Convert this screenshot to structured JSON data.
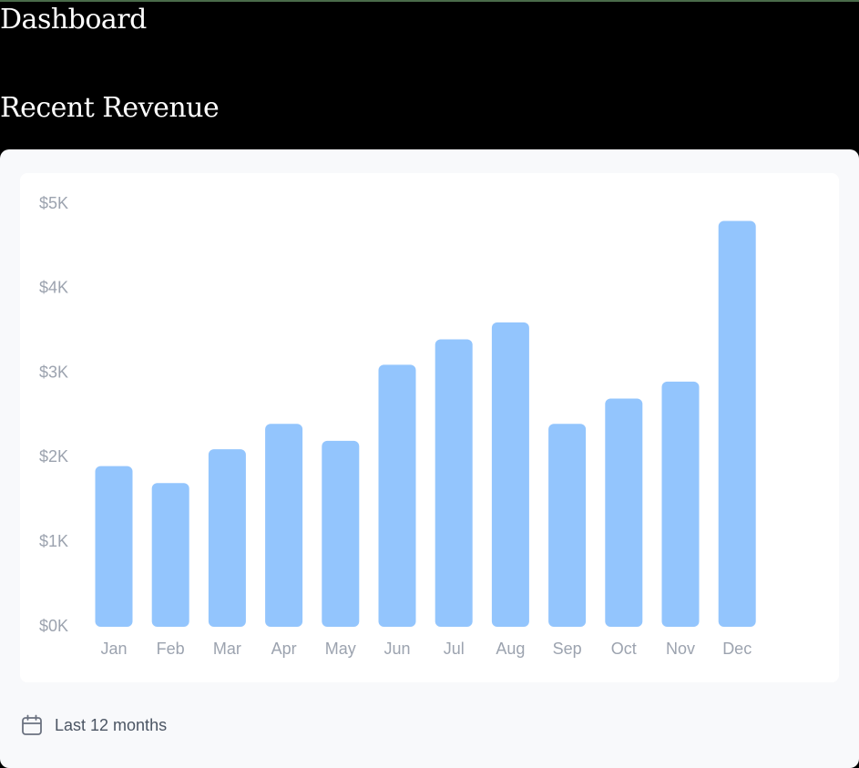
{
  "header": {
    "title": "Dashboard"
  },
  "section": {
    "title": "Recent Revenue"
  },
  "footer": {
    "icon": "calendar-icon",
    "label": "Last 12 months"
  },
  "colors": {
    "bar": "#93c5fd",
    "axis_text": "#9ca3af",
    "card_bg": "#f8f9fb",
    "panel_bg": "#ffffff"
  },
  "chart_data": {
    "type": "bar",
    "categories": [
      "Jan",
      "Feb",
      "Mar",
      "Apr",
      "May",
      "Jun",
      "Jul",
      "Aug",
      "Sep",
      "Oct",
      "Nov",
      "Dec"
    ],
    "values": [
      1900,
      1700,
      2100,
      2400,
      2200,
      3100,
      3400,
      3600,
      2400,
      2700,
      2900,
      4800
    ],
    "yticks": [
      {
        "value": 5000,
        "label": "$5K"
      },
      {
        "value": 4000,
        "label": "$4K"
      },
      {
        "value": 3000,
        "label": "$3K"
      },
      {
        "value": 2000,
        "label": "$2K"
      },
      {
        "value": 1000,
        "label": "$1K"
      },
      {
        "value": 0,
        "label": "$0K"
      }
    ],
    "ylim": [
      0,
      5000
    ],
    "grid": false,
    "legend": false
  }
}
